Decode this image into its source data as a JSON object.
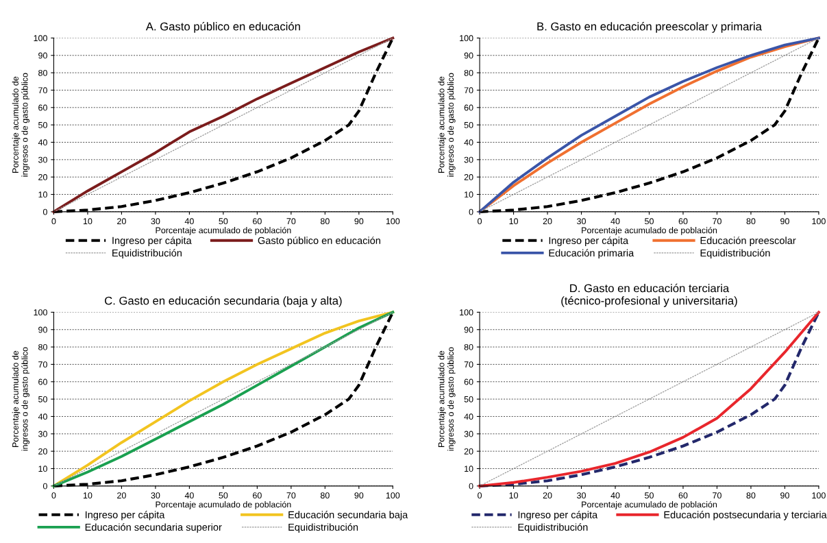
{
  "chart_data": [
    {
      "type": "line",
      "title": "A. Gasto público en educación",
      "xlabel": "Porcentaje acumulado de población",
      "ylabel": "Porcentaje acumulado de\ningresos o de gasto público",
      "x": [
        0,
        10,
        20,
        30,
        40,
        50,
        60,
        70,
        80,
        87,
        90,
        95,
        100
      ],
      "xlim": [
        0,
        100
      ],
      "ylim": [
        0,
        100
      ],
      "xticks": [
        0,
        10,
        20,
        30,
        40,
        50,
        60,
        70,
        80,
        90,
        100
      ],
      "yticks": [
        0,
        10,
        20,
        30,
        40,
        50,
        60,
        70,
        80,
        90,
        100
      ],
      "grid": "y",
      "legend": "bottom",
      "marker": "none",
      "series": [
        {
          "name": "Ingreso per cápita",
          "color": "#000000",
          "line_style": "dashed",
          "values": [
            0,
            1,
            3,
            6.5,
            11,
            16.5,
            23,
            31,
            41,
            50,
            58,
            80,
            100
          ]
        },
        {
          "name": "Gasto público en educación",
          "color": "#7b1c1c",
          "line_style": "solid",
          "x": [
            0,
            10,
            20,
            30,
            40,
            50,
            60,
            70,
            80,
            90,
            100
          ],
          "values": [
            0,
            12,
            23,
            34,
            46,
            55,
            65,
            74,
            83,
            92,
            100
          ]
        },
        {
          "name": "Equidistribución",
          "color": "#999999",
          "line_style": "dotted",
          "x": [
            0,
            100
          ],
          "values": [
            0,
            100
          ]
        }
      ]
    },
    {
      "type": "line",
      "title": "B. Gasto en educación preescolar y primaria",
      "xlabel": "Porcentaje acumulado de población",
      "ylabel": "Porcentaje acumulado de\ningresos o de gasto público",
      "x": [
        0,
        10,
        20,
        30,
        40,
        50,
        60,
        70,
        80,
        87,
        90,
        95,
        100
      ],
      "xlim": [
        0,
        100
      ],
      "ylim": [
        0,
        100
      ],
      "xticks": [
        0,
        10,
        20,
        30,
        40,
        50,
        60,
        70,
        80,
        90,
        100
      ],
      "yticks": [
        0,
        10,
        20,
        30,
        40,
        50,
        60,
        70,
        80,
        90,
        100
      ],
      "grid": "y",
      "legend": "bottom",
      "marker": "none",
      "series": [
        {
          "name": "Ingreso per cápita",
          "color": "#000000",
          "line_style": "dashed",
          "values": [
            0,
            1,
            3,
            6.5,
            11,
            16.5,
            23,
            31,
            41,
            50,
            58,
            80,
            100
          ]
        },
        {
          "name": "Educación preescolar",
          "color": "#f07030",
          "line_style": "solid",
          "x": [
            0,
            10,
            20,
            30,
            40,
            50,
            60,
            70,
            80,
            90,
            100
          ],
          "values": [
            0,
            15,
            28,
            40,
            51,
            62,
            72,
            81,
            89,
            95,
            100
          ]
        },
        {
          "name": "Educación primaria",
          "color": "#3a55a8",
          "line_style": "solid",
          "x": [
            0,
            10,
            20,
            30,
            40,
            50,
            60,
            70,
            80,
            90,
            100
          ],
          "values": [
            0,
            17,
            31,
            44,
            55,
            66,
            75,
            83,
            90,
            96,
            100
          ]
        },
        {
          "name": "Equidistribución",
          "color": "#999999",
          "line_style": "dotted",
          "x": [
            0,
            100
          ],
          "values": [
            0,
            100
          ]
        }
      ]
    },
    {
      "type": "line",
      "title": "C. Gasto en educación secundaria (baja y alta)",
      "xlabel": "Porcentaje acumulado de población",
      "ylabel": "Porcentaje acumulado de\ningresos o de gasto público",
      "x": [
        0,
        10,
        20,
        30,
        40,
        50,
        60,
        70,
        80,
        87,
        90,
        95,
        100
      ],
      "xlim": [
        0,
        100
      ],
      "ylim": [
        0,
        100
      ],
      "xticks": [
        0,
        10,
        20,
        30,
        40,
        50,
        60,
        70,
        80,
        90,
        100
      ],
      "yticks": [
        0,
        10,
        20,
        30,
        40,
        50,
        60,
        70,
        80,
        90,
        100
      ],
      "grid": "y",
      "legend": "bottom",
      "marker": "none",
      "series": [
        {
          "name": "Ingreso per cápita",
          "color": "#000000",
          "line_style": "dashed",
          "values": [
            0,
            1,
            3,
            6.5,
            11,
            16.5,
            23,
            31,
            41,
            50,
            58,
            80,
            100
          ]
        },
        {
          "name": "Educación secundaria baja",
          "color": "#f2c420",
          "line_style": "solid",
          "x": [
            0,
            10,
            20,
            30,
            40,
            50,
            60,
            70,
            80,
            90,
            100
          ],
          "values": [
            0,
            12,
            25,
            37,
            49,
            60,
            70,
            79,
            88,
            95,
            100
          ]
        },
        {
          "name": "Educación secundaria superior",
          "color": "#1aa050",
          "line_style": "solid",
          "x": [
            0,
            10,
            20,
            30,
            40,
            50,
            60,
            70,
            80,
            90,
            100
          ],
          "values": [
            0,
            8,
            17,
            27,
            37,
            47,
            58,
            69,
            80,
            91,
            100
          ]
        },
        {
          "name": "Equidistribución",
          "color": "#999999",
          "line_style": "dotted",
          "x": [
            0,
            100
          ],
          "values": [
            0,
            100
          ]
        }
      ]
    },
    {
      "type": "line",
      "title": "D. Gasto en educación terciaria\n(técnico-profesional y universitaria)",
      "xlabel": "Porcentaje acumulado de población",
      "ylabel": "Porcentaje acumulado de\ningresos o de gasto público",
      "x": [
        0,
        10,
        20,
        30,
        40,
        50,
        60,
        70,
        80,
        87,
        90,
        95,
        100
      ],
      "xlim": [
        0,
        100
      ],
      "ylim": [
        0,
        100
      ],
      "xticks": [
        0,
        10,
        20,
        30,
        40,
        50,
        60,
        70,
        80,
        90,
        100
      ],
      "yticks": [
        0,
        10,
        20,
        30,
        40,
        50,
        60,
        70,
        80,
        90,
        100
      ],
      "grid": "y",
      "legend": "bottom",
      "marker": "none",
      "series": [
        {
          "name": "Ingreso per cápita",
          "color": "#23286b",
          "line_style": "dashed",
          "values": [
            0,
            1,
            3,
            6.5,
            11,
            16.5,
            23,
            31,
            41,
            50,
            58,
            80,
            100
          ]
        },
        {
          "name": "Educación postsecundaria y terciaria",
          "color": "#e8262c",
          "line_style": "solid",
          "x": [
            0,
            10,
            20,
            30,
            40,
            50,
            60,
            70,
            80,
            90,
            100
          ],
          "values": [
            0,
            2,
            5,
            8.5,
            13,
            19.5,
            28,
            39,
            56,
            77,
            100
          ]
        },
        {
          "name": "Equidistribución",
          "color": "#999999",
          "line_style": "dotted",
          "x": [
            0,
            100
          ],
          "values": [
            0,
            100
          ]
        }
      ]
    }
  ]
}
